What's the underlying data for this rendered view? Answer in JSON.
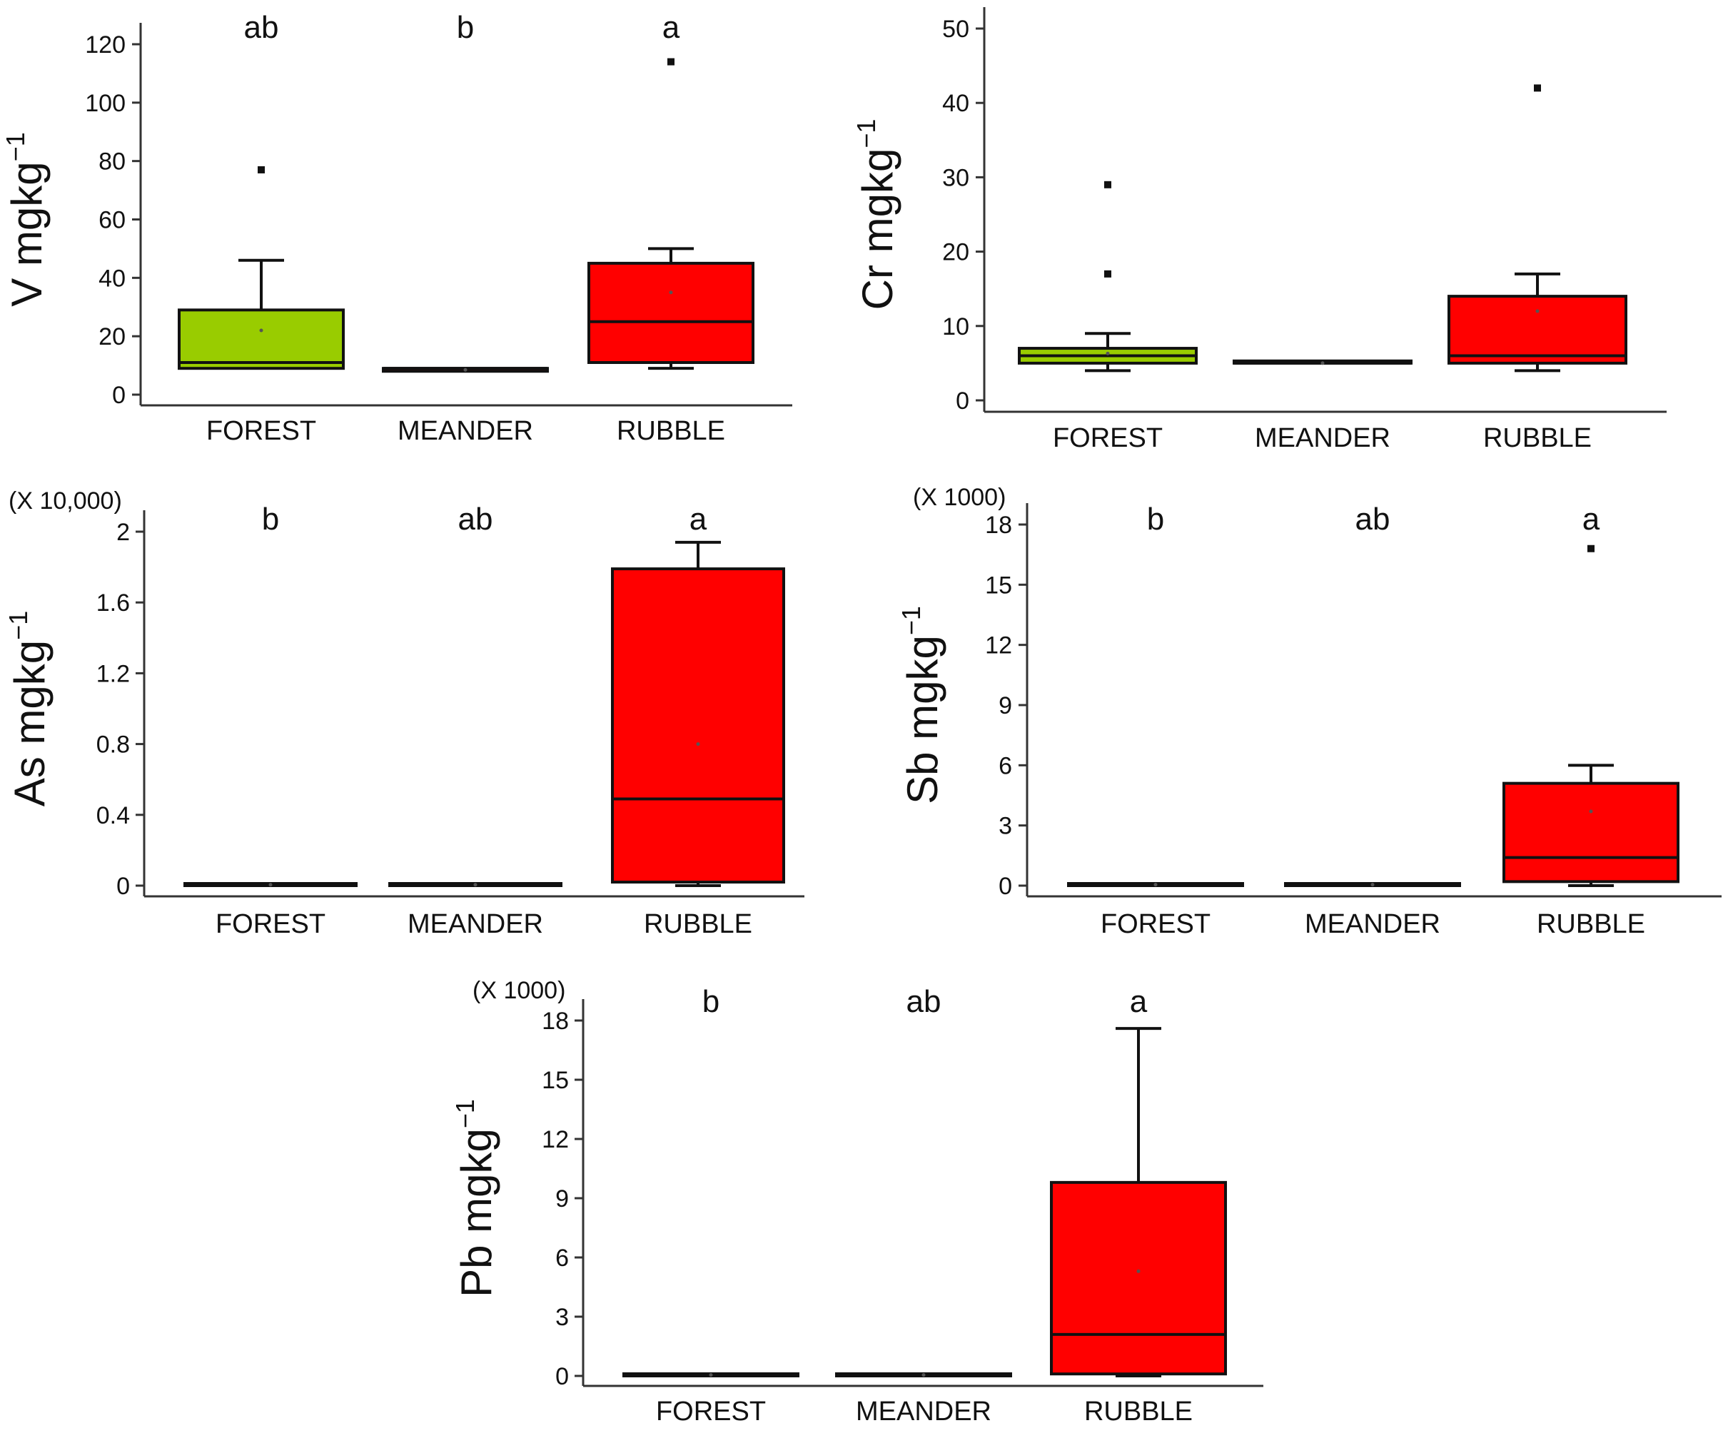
{
  "chart_data": [
    {
      "type": "box",
      "element": "V",
      "ylabel": "V mgkg",
      "ylabel_sup": "−1",
      "multiplier": "",
      "ylim": [
        0,
        120
      ],
      "yticks": [
        "0",
        "20",
        "40",
        "60",
        "80",
        "100",
        "120"
      ],
      "categories": [
        "FOREST",
        "MEANDER",
        "RUBBLE"
      ],
      "significance": [
        "ab",
        "b",
        "a"
      ],
      "boxes": [
        {
          "category": "FOREST",
          "color": "#99CC00",
          "whisker_low": 9,
          "q1": 9,
          "median": 11,
          "q3": 29,
          "whisker_high": 46,
          "mean": 22,
          "outliers": [
            77
          ]
        },
        {
          "category": "MEANDER",
          "color": "#FF0000",
          "whisker_low": 8,
          "q1": 8,
          "median": 9,
          "q3": 9,
          "whisker_high": 9,
          "mean": 8.5,
          "outliers": []
        },
        {
          "category": "RUBBLE",
          "color": "#FF0000",
          "whisker_low": 9,
          "q1": 11,
          "median": 25,
          "q3": 45,
          "whisker_high": 50,
          "mean": 35,
          "outliers": [
            114
          ]
        }
      ]
    },
    {
      "type": "box",
      "element": "Cr",
      "ylabel": "Cr mgkg",
      "ylabel_sup": "−1",
      "multiplier": "",
      "ylim": [
        0,
        50
      ],
      "yticks": [
        "0",
        "10",
        "20",
        "30",
        "40",
        "50"
      ],
      "categories": [
        "FOREST",
        "MEANDER",
        "RUBBLE"
      ],
      "significance": [
        "",
        "",
        ""
      ],
      "boxes": [
        {
          "category": "FOREST",
          "color": "#99CC00",
          "whisker_low": 4,
          "q1": 5,
          "median": 6,
          "q3": 7,
          "whisker_high": 9,
          "mean": 6.3,
          "outliers": [
            17,
            29
          ]
        },
        {
          "category": "MEANDER",
          "color": "#FF0000",
          "whisker_low": 5,
          "q1": 5,
          "median": 5,
          "q3": 5.3,
          "whisker_high": 5.3,
          "mean": 5,
          "outliers": []
        },
        {
          "category": "RUBBLE",
          "color": "#FF0000",
          "whisker_low": 4,
          "q1": 5,
          "median": 6,
          "q3": 14,
          "whisker_high": 17,
          "mean": 12,
          "outliers": [
            42
          ]
        }
      ]
    },
    {
      "type": "box",
      "element": "As",
      "ylabel": "As mgkg",
      "ylabel_sup": "−1",
      "multiplier": "(X 10,000)",
      "ylim": [
        0,
        2
      ],
      "yticks": [
        "0",
        "0.4",
        "0.8",
        "1.2",
        "1.6",
        "2"
      ],
      "categories": [
        "FOREST",
        "MEANDER",
        "RUBBLE"
      ],
      "significance": [
        "b",
        "ab",
        "a"
      ],
      "boxes": [
        {
          "category": "FOREST",
          "color": "#FF0000",
          "whisker_low": 0,
          "q1": 0,
          "median": 0.005,
          "q3": 0.01,
          "whisker_high": 0.01,
          "mean": 0.005,
          "outliers": []
        },
        {
          "category": "MEANDER",
          "color": "#FF0000",
          "whisker_low": 0,
          "q1": 0,
          "median": 0.005,
          "q3": 0.01,
          "whisker_high": 0.01,
          "mean": 0.005,
          "outliers": []
        },
        {
          "category": "RUBBLE",
          "color": "#FF0000",
          "whisker_low": 0,
          "q1": 0.02,
          "median": 0.49,
          "q3": 1.79,
          "whisker_high": 1.94,
          "mean": 0.8,
          "outliers": []
        }
      ]
    },
    {
      "type": "box",
      "element": "Sb",
      "ylabel": "Sb mgkg",
      "ylabel_sup": "−1",
      "multiplier": "(X 1000)",
      "ylim": [
        0,
        18
      ],
      "yticks": [
        "0",
        "3",
        "6",
        "9",
        "12",
        "15",
        "18"
      ],
      "categories": [
        "FOREST",
        "MEANDER",
        "RUBBLE"
      ],
      "significance": [
        "b",
        "ab",
        "a"
      ],
      "boxes": [
        {
          "category": "FOREST",
          "color": "#FF0000",
          "whisker_low": 0,
          "q1": 0,
          "median": 0.05,
          "q3": 0.1,
          "whisker_high": 0.1,
          "mean": 0.05,
          "outliers": []
        },
        {
          "category": "MEANDER",
          "color": "#FF0000",
          "whisker_low": 0,
          "q1": 0,
          "median": 0.05,
          "q3": 0.1,
          "whisker_high": 0.1,
          "mean": 0.05,
          "outliers": []
        },
        {
          "category": "RUBBLE",
          "color": "#FF0000",
          "whisker_low": 0,
          "q1": 0.2,
          "median": 1.4,
          "q3": 5.1,
          "whisker_high": 6,
          "mean": 3.7,
          "outliers": [
            16.8
          ]
        }
      ]
    },
    {
      "type": "box",
      "element": "Pb",
      "ylabel": "Pb mgkg",
      "ylabel_sup": "−1",
      "multiplier": "(X 1000)",
      "ylim": [
        0,
        18
      ],
      "yticks": [
        "0",
        "3",
        "6",
        "9",
        "12",
        "15",
        "18"
      ],
      "categories": [
        "FOREST",
        "MEANDER",
        "RUBBLE"
      ],
      "significance": [
        "b",
        "ab",
        "a"
      ],
      "boxes": [
        {
          "category": "FOREST",
          "color": "#FF0000",
          "whisker_low": 0,
          "q1": 0,
          "median": 0.05,
          "q3": 0.1,
          "whisker_high": 0.1,
          "mean": 0.05,
          "outliers": []
        },
        {
          "category": "MEANDER",
          "color": "#FF0000",
          "whisker_low": 0,
          "q1": 0,
          "median": 0.05,
          "q3": 0.1,
          "whisker_high": 0.1,
          "mean": 0.05,
          "outliers": []
        },
        {
          "category": "RUBBLE",
          "color": "#FF0000",
          "whisker_low": 0,
          "q1": 0.1,
          "median": 2.1,
          "q3": 9.8,
          "whisker_high": 17.6,
          "mean": 5.3,
          "outliers": []
        }
      ]
    }
  ]
}
